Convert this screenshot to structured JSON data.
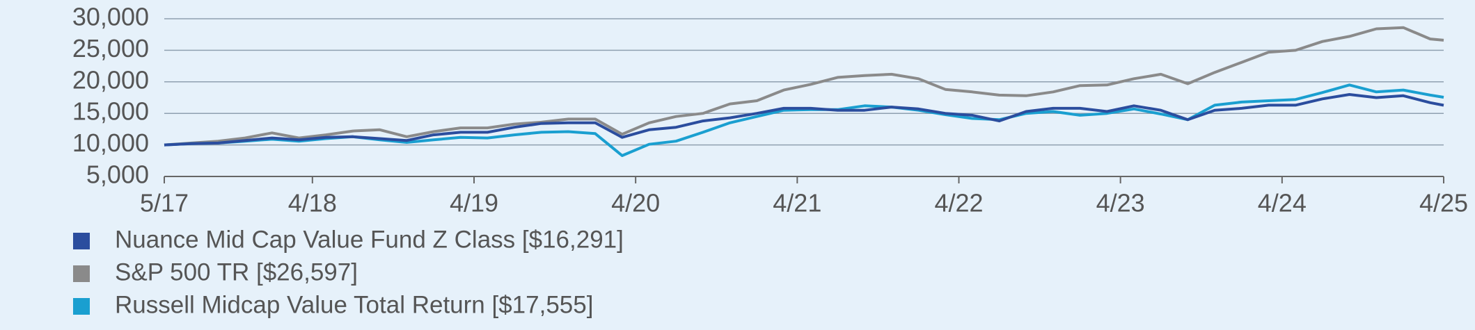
{
  "chart_data": {
    "type": "line",
    "x": [
      "2017-05",
      "2017-07",
      "2017-09",
      "2017-11",
      "2018-01",
      "2018-03",
      "2018-05",
      "2018-07",
      "2018-09",
      "2018-11",
      "2019-01",
      "2019-03",
      "2019-05",
      "2019-07",
      "2019-09",
      "2019-11",
      "2020-01",
      "2020-03",
      "2020-05",
      "2020-07",
      "2020-09",
      "2020-11",
      "2021-01",
      "2021-03",
      "2021-05",
      "2021-07",
      "2021-09",
      "2021-11",
      "2022-01",
      "2022-03",
      "2022-05",
      "2022-07",
      "2022-09",
      "2022-11",
      "2023-01",
      "2023-03",
      "2023-05",
      "2023-07",
      "2023-09",
      "2023-11",
      "2024-01",
      "2024-03",
      "2024-05",
      "2024-07",
      "2024-09",
      "2024-11",
      "2025-01",
      "2025-03",
      "2025-04"
    ],
    "series": [
      {
        "name": "Nuance Mid Cap Value Fund Z Class [$16,291]",
        "color": "#2b4d9e",
        "values": [
          10000,
          10200,
          10300,
          10700,
          11100,
          10800,
          11200,
          11300,
          11000,
          10700,
          11600,
          12000,
          12000,
          12800,
          13400,
          13500,
          13500,
          11200,
          12400,
          12800,
          13800,
          14300,
          15000,
          15800,
          15800,
          15500,
          15500,
          16000,
          15700,
          15000,
          14700,
          13800,
          15300,
          15800,
          15800,
          15300,
          16200,
          15500,
          14000,
          15500,
          15800,
          16300,
          16300,
          17300,
          18000,
          17500,
          17800,
          16700,
          16291
        ]
      },
      {
        "name": "S&P 500 TR [$26,597]",
        "color": "#8a8a8a",
        "values": [
          10000,
          10300,
          10600,
          11100,
          11900,
          11100,
          11600,
          12200,
          12400,
          11300,
          12100,
          12700,
          12700,
          13300,
          13600,
          14100,
          14100,
          11700,
          13500,
          14500,
          15000,
          16500,
          17000,
          18700,
          19600,
          20700,
          21000,
          21200,
          20500,
          18800,
          18400,
          17900,
          17800,
          18400,
          19400,
          19500,
          20500,
          21200,
          19700,
          21500,
          23100,
          24700,
          25000,
          26400,
          27200,
          28400,
          28600,
          26800,
          26597
        ]
      },
      {
        "name": "Russell Midcap Value Total Return [$17,555]",
        "color": "#1a9fd0",
        "values": [
          10000,
          10200,
          10300,
          10600,
          10900,
          10600,
          11000,
          11300,
          10800,
          10400,
          10800,
          11200,
          11100,
          11600,
          12000,
          12100,
          11800,
          8300,
          10100,
          10600,
          12000,
          13500,
          14500,
          15500,
          15600,
          15600,
          16200,
          16000,
          15500,
          14800,
          14200,
          14000,
          15000,
          15300,
          14700,
          15000,
          15700,
          14900,
          14000,
          16300,
          16800,
          17000,
          17200,
          18300,
          19500,
          18400,
          18700,
          17900,
          17555
        ]
      }
    ],
    "xlim": [
      "2017-05",
      "2025-04"
    ],
    "xticks": [
      {
        "value": "2017-05",
        "label": "5/17"
      },
      {
        "value": "2018-04",
        "label": "4/18"
      },
      {
        "value": "2019-04",
        "label": "4/19"
      },
      {
        "value": "2020-04",
        "label": "4/20"
      },
      {
        "value": "2021-04",
        "label": "4/21"
      },
      {
        "value": "2022-04",
        "label": "4/22"
      },
      {
        "value": "2023-04",
        "label": "4/23"
      },
      {
        "value": "2024-04",
        "label": "4/24"
      },
      {
        "value": "2025-04",
        "label": "4/25"
      }
    ],
    "ylim": [
      5000,
      30000
    ],
    "yticks": [
      {
        "value": 5000,
        "label": "5,000"
      },
      {
        "value": 10000,
        "label": "10,000"
      },
      {
        "value": 15000,
        "label": "15,000"
      },
      {
        "value": 20000,
        "label": "20,000"
      },
      {
        "value": 25000,
        "label": "25,000"
      },
      {
        "value": 30000,
        "label": "30,000"
      }
    ],
    "grid": true
  }
}
